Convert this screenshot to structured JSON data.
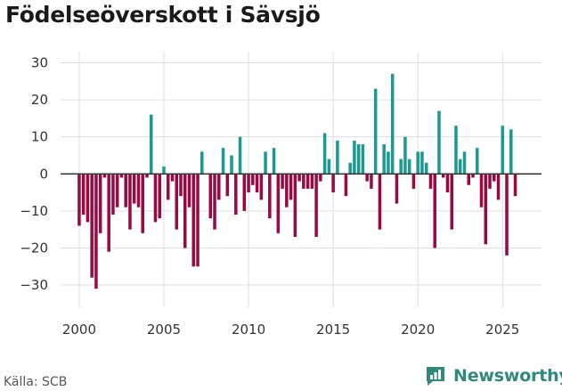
{
  "title": "Födelseöverskott i Sävsjö",
  "source": "Källa: SCB",
  "brand": "Newsworthy",
  "colors": {
    "positive": "#1a9a91",
    "negative": "#990a43",
    "grid": "#dedede",
    "zero": "#333333",
    "brand": "#2f8a7d"
  },
  "chart_data": {
    "type": "bar",
    "title": "Födelseöverskott i Sävsjö",
    "xlabel": "",
    "ylabel": "",
    "ylim": [
      -36,
      33
    ],
    "xlim": [
      1998.9,
      2027.3
    ],
    "yticks": [
      30,
      20,
      10,
      0,
      -10,
      -20,
      -30
    ],
    "ytick_labels": [
      "30",
      "20",
      "10",
      "0",
      "−10",
      "−20",
      "−30"
    ],
    "xticks": [
      2000,
      2005,
      2010,
      2015,
      2020,
      2025
    ],
    "xtick_labels": [
      "2000",
      "2005",
      "2010",
      "2015",
      "2020",
      "2025"
    ],
    "frequency": "quarterly",
    "x": [
      2000.0,
      2000.25,
      2000.5,
      2000.75,
      2001.0,
      2001.25,
      2001.5,
      2001.75,
      2002.0,
      2002.25,
      2002.5,
      2002.75,
      2003.0,
      2003.25,
      2003.5,
      2003.75,
      2004.0,
      2004.25,
      2004.5,
      2004.75,
      2005.0,
      2005.25,
      2005.5,
      2005.75,
      2006.0,
      2006.25,
      2006.5,
      2006.75,
      2007.0,
      2007.25,
      2007.5,
      2007.75,
      2008.0,
      2008.25,
      2008.5,
      2008.75,
      2009.0,
      2009.25,
      2009.5,
      2009.75,
      2010.0,
      2010.25,
      2010.5,
      2010.75,
      2011.0,
      2011.25,
      2011.5,
      2011.75,
      2012.0,
      2012.25,
      2012.5,
      2012.75,
      2013.0,
      2013.25,
      2013.5,
      2013.75,
      2014.0,
      2014.25,
      2014.5,
      2014.75,
      2015.0,
      2015.25,
      2015.5,
      2015.75,
      2016.0,
      2016.25,
      2016.5,
      2016.75,
      2017.0,
      2017.25,
      2017.5,
      2017.75,
      2018.0,
      2018.25,
      2018.5,
      2018.75,
      2019.0,
      2019.25,
      2019.5,
      2019.75,
      2020.0,
      2020.25,
      2020.5,
      2020.75,
      2021.0,
      2021.25,
      2021.5,
      2021.75,
      2022.0,
      2022.25,
      2022.5,
      2022.75,
      2023.0,
      2023.25,
      2023.5,
      2023.75,
      2024.0,
      2024.25,
      2024.5,
      2024.75,
      2025.0,
      2025.25,
      2025.5,
      2025.75
    ],
    "values": [
      -14,
      -11,
      -13,
      -28,
      -31,
      -16,
      -1,
      -21,
      -11,
      -9,
      -1,
      -9,
      -15,
      -8,
      -9,
      -16,
      -1,
      16,
      -13,
      -12,
      2,
      -7,
      -2,
      -15,
      -6,
      -20,
      -9,
      -25,
      -25,
      6,
      0,
      -12,
      -15,
      -7,
      7,
      -6,
      5,
      -11,
      10,
      -10,
      -5,
      -3,
      -5,
      -7,
      6,
      -12,
      7,
      -16,
      -4,
      -9,
      -7,
      -17,
      -2,
      -4,
      -4,
      -4,
      -17,
      -2,
      11,
      4,
      -5,
      9,
      0,
      -6,
      3,
      9,
      8,
      8,
      -2,
      -4,
      23,
      -15,
      8,
      6,
      27,
      -8,
      4,
      10,
      4,
      -4,
      6,
      6,
      3,
      -4,
      -20,
      17,
      -1,
      -5,
      -15,
      13,
      4,
      6,
      -3,
      -1,
      7,
      -9,
      -19,
      -4,
      -2,
      -7,
      13,
      -22,
      12,
      -6
    ]
  }
}
